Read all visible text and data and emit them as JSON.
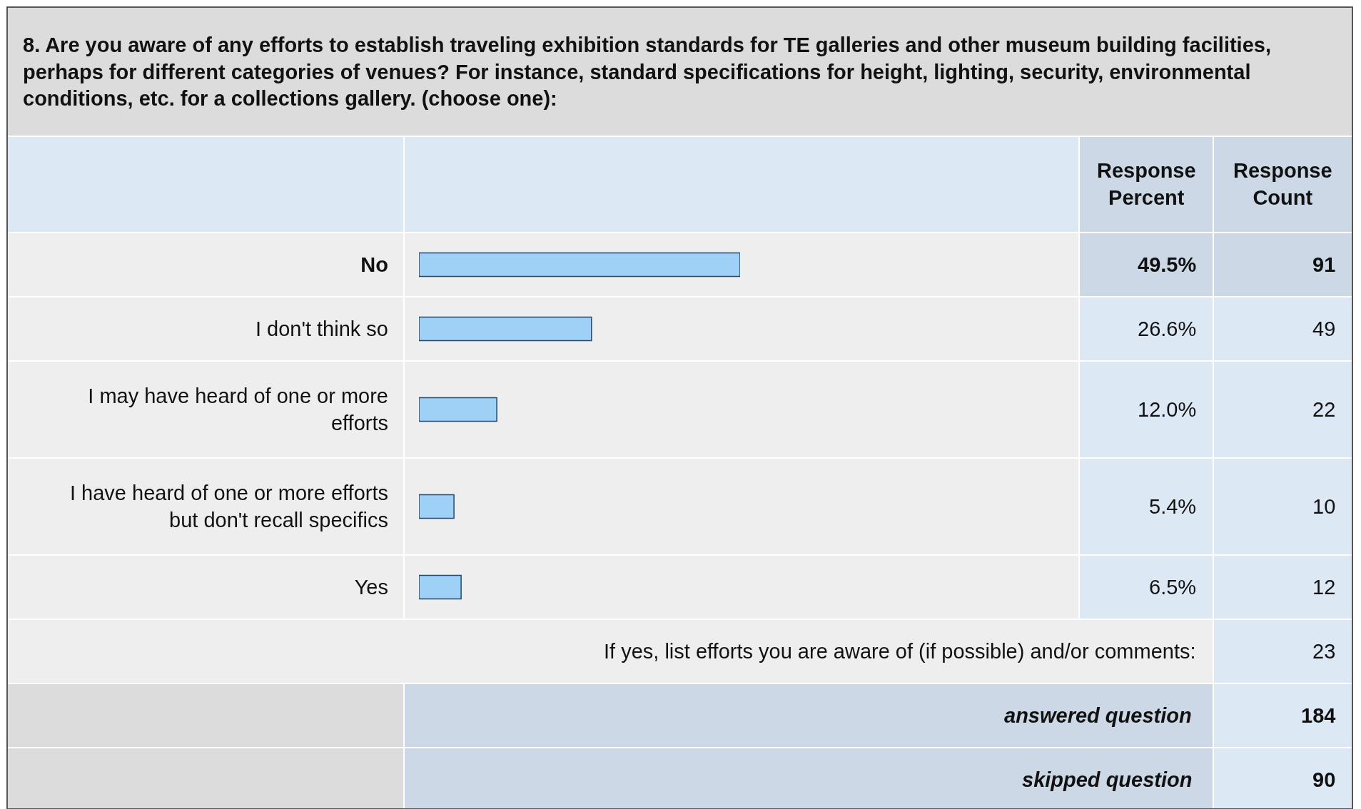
{
  "chart_data": {
    "type": "bar",
    "orientation": "horizontal",
    "title": "8. Are you aware of any efforts to establish traveling exhibition standards for TE galleries and other museum building facilities, perhaps for different categories of venues? For instance, standard specifications for height, lighting, security, environmental conditions, etc. for a collections gallery. (choose one):",
    "categories": [
      "No",
      "I don't think so",
      "I may have heard of one or more efforts",
      "I have heard of one or more efforts but don't recall specifics",
      "Yes"
    ],
    "values": [
      49.5,
      26.6,
      12.0,
      5.4,
      6.5
    ],
    "value_labels": [
      "49.5%",
      "26.6%",
      "12.0%",
      "5.4%",
      "6.5%"
    ],
    "color": "#9fd0f5",
    "tick_labels": "y",
    "annotations": [
      "Response Percent",
      "Response Count",
      "91",
      "49",
      "22",
      "10",
      "12",
      "If yes, list efforts you are aware of (if possible) and/or comments:",
      "23",
      "answered question",
      "184",
      "skipped question",
      "90"
    ]
  }
}
